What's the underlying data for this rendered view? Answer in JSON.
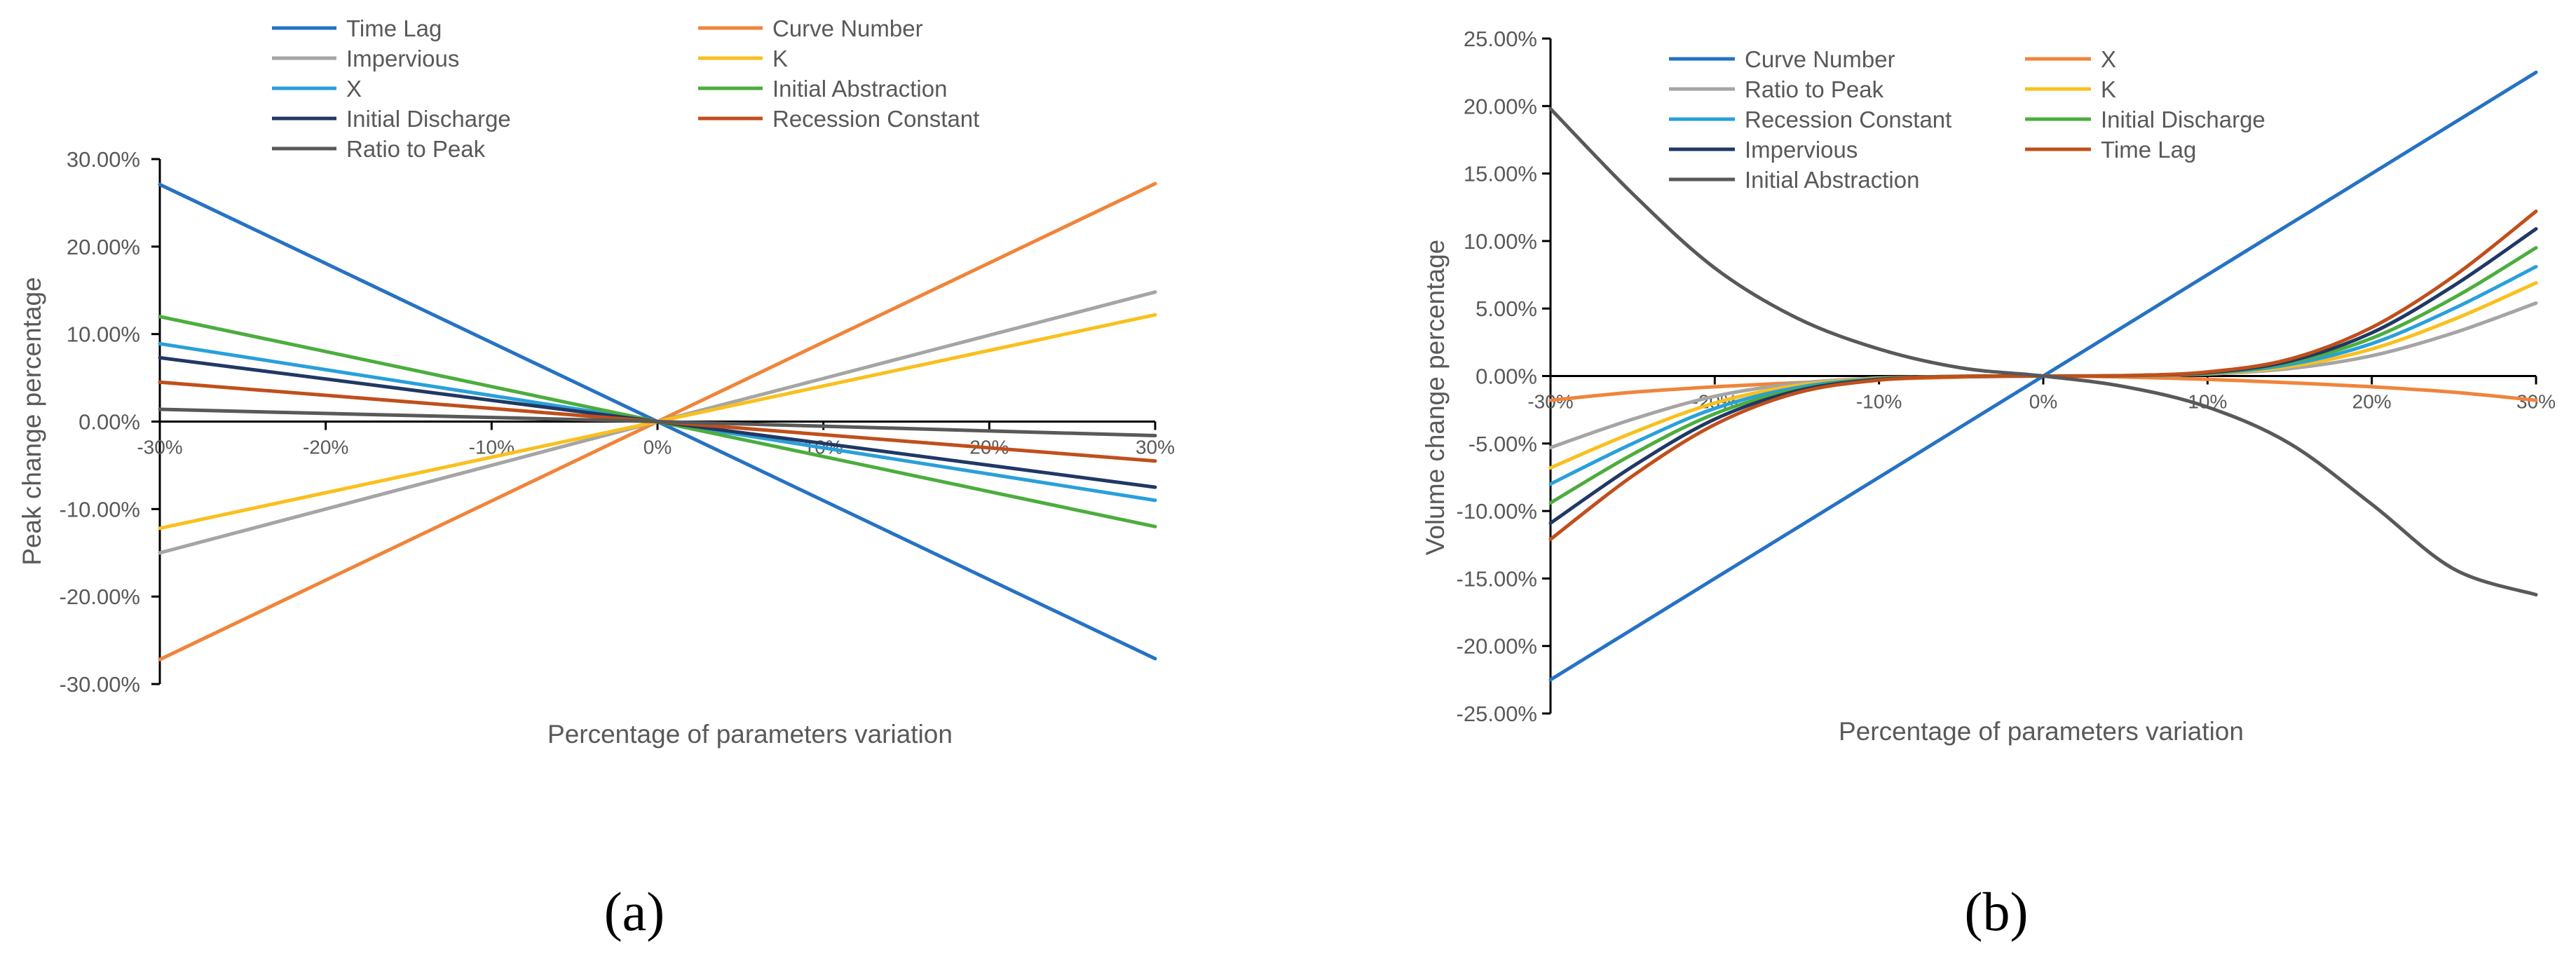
{
  "chart_data": [
    {
      "type": "line",
      "panel_label": "(a)",
      "xlabel": "Percentage of parameters variation",
      "ylabel": "Peak change percentage",
      "x": [
        -30,
        -20,
        -10,
        0,
        10,
        20,
        30
      ],
      "x_tick_labels": [
        "-30%",
        "-20%",
        "-10%",
        "0%",
        "10%",
        "20%",
        "30%"
      ],
      "xlim": [
        -30,
        30
      ],
      "ylim": [
        -30,
        30
      ],
      "y_ticks": [
        30,
        20,
        10,
        0,
        -10,
        -20,
        -30
      ],
      "y_tick_labels": [
        "30.00%",
        "20.00%",
        "10.00%",
        "0.00%",
        "-10.00%",
        "-20.00%",
        "-30.00%"
      ],
      "legend": "top",
      "series": [
        {
          "name": "Time Lag",
          "color": "#2672C4",
          "values": [
            27.1,
            18.07,
            9.03,
            0,
            -9.03,
            -18.07,
            -27.1
          ]
        },
        {
          "name": "Curve Number",
          "color": "#F0843A",
          "values": [
            -27.2,
            -18.13,
            -9.07,
            0,
            9.07,
            18.13,
            27.2
          ]
        },
        {
          "name": "Impervious",
          "color": "#A5A5A5",
          "values": [
            -15.0,
            -10.0,
            -5.0,
            0,
            4.93,
            9.87,
            14.8
          ]
        },
        {
          "name": "K",
          "color": "#F9C01D",
          "values": [
            -12.2,
            -8.13,
            -4.07,
            0,
            4.07,
            8.13,
            12.2
          ]
        },
        {
          "name": "X",
          "color": "#29A0DA",
          "values": [
            8.9,
            5.93,
            2.97,
            0,
            -3.0,
            -6.0,
            -9.0
          ]
        },
        {
          "name": "Initial Abstraction",
          "color": "#4CAD3E",
          "values": [
            12.0,
            8.0,
            4.0,
            0,
            -4.0,
            -8.0,
            -12.0
          ]
        },
        {
          "name": "Initial Discharge",
          "color": "#203864",
          "values": [
            7.3,
            4.87,
            2.43,
            0,
            -2.5,
            -5.0,
            -7.5
          ]
        },
        {
          "name": "Recession Constant",
          "color": "#C04F1B",
          "values": [
            4.5,
            3.0,
            1.5,
            0,
            -1.5,
            -3.0,
            -4.5
          ]
        },
        {
          "name": "Ratio to Peak",
          "color": "#595959",
          "values": [
            1.4,
            0.93,
            0.47,
            0,
            -0.53,
            -1.07,
            -1.6
          ]
        }
      ]
    },
    {
      "type": "line",
      "panel_label": "(b)",
      "xlabel": "Percentage of parameters variation",
      "ylabel": "Volume change percentage",
      "x": [
        -30,
        -25,
        -20,
        -15,
        -10,
        -5,
        0,
        5,
        10,
        15,
        20,
        25,
        30
      ],
      "x_tick_labels": [
        "-30%",
        "-20%",
        "-10%",
        "0%",
        "10%",
        "20%",
        "30%"
      ],
      "xlim": [
        -30,
        30
      ],
      "ylim": [
        -25,
        25
      ],
      "y_ticks": [
        25,
        20,
        15,
        10,
        5,
        0,
        -5,
        -10,
        -15,
        -20,
        -25
      ],
      "y_tick_labels": [
        "25.00%",
        "20.00%",
        "15.00%",
        "10.00%",
        "5.00%",
        "0.00%",
        "-5.00%",
        "-10.00%",
        "-15.00%",
        "-20.00%",
        "-25.00%"
      ],
      "legend": "top",
      "series": [
        {
          "name": "Curve Number",
          "color": "#2672C4",
          "values": [
            -22.5,
            -18.75,
            -15.0,
            -11.25,
            -7.5,
            -3.75,
            0,
            3.75,
            7.5,
            11.25,
            15.0,
            18.75,
            22.5
          ]
        },
        {
          "name": "X",
          "color": "#F0843A",
          "values": [
            -1.8,
            -1.2,
            -0.8,
            -0.5,
            -0.25,
            -0.08,
            0,
            -0.08,
            -0.25,
            -0.5,
            -0.8,
            -1.2,
            -1.8
          ]
        },
        {
          "name": "Ratio to Peak",
          "color": "#A5A5A5",
          "values": [
            -5.3,
            -3.2,
            -1.5,
            -0.55,
            -0.15,
            -0.02,
            0,
            0.02,
            0.15,
            0.55,
            1.5,
            3.2,
            5.4
          ]
        },
        {
          "name": "K",
          "color": "#F9C01D",
          "values": [
            -6.8,
            -4.2,
            -2.0,
            -0.7,
            -0.18,
            -0.02,
            0,
            0.02,
            0.18,
            0.7,
            2.0,
            4.2,
            6.9
          ]
        },
        {
          "name": "Recession Constant",
          "color": "#29A0DA",
          "values": [
            -8.0,
            -5.0,
            -2.4,
            -0.85,
            -0.2,
            -0.02,
            0,
            0.02,
            0.2,
            0.85,
            2.4,
            5.0,
            8.1
          ]
        },
        {
          "name": "Initial Discharge",
          "color": "#4CAD3E",
          "values": [
            -9.4,
            -5.8,
            -2.8,
            -1.0,
            -0.22,
            -0.02,
            0,
            0.02,
            0.22,
            1.0,
            2.8,
            5.8,
            9.5
          ]
        },
        {
          "name": "Impervious",
          "color": "#203864",
          "values": [
            -10.9,
            -6.7,
            -3.2,
            -1.1,
            -0.25,
            -0.03,
            0,
            0.03,
            0.25,
            1.1,
            3.2,
            6.7,
            10.9
          ]
        },
        {
          "name": "Time Lag",
          "color": "#C04F1B",
          "values": [
            -12.1,
            -7.4,
            -3.6,
            -1.25,
            -0.3,
            -0.03,
            0,
            0.03,
            0.3,
            1.25,
            3.6,
            7.4,
            12.2
          ]
        },
        {
          "name": "Initial Abstraction",
          "color": "#595959",
          "values": [
            19.8,
            13.5,
            8.0,
            4.3,
            2.0,
            0.6,
            0,
            -0.8,
            -2.3,
            -5.0,
            -9.5,
            -14.3,
            -16.2
          ]
        }
      ]
    }
  ]
}
